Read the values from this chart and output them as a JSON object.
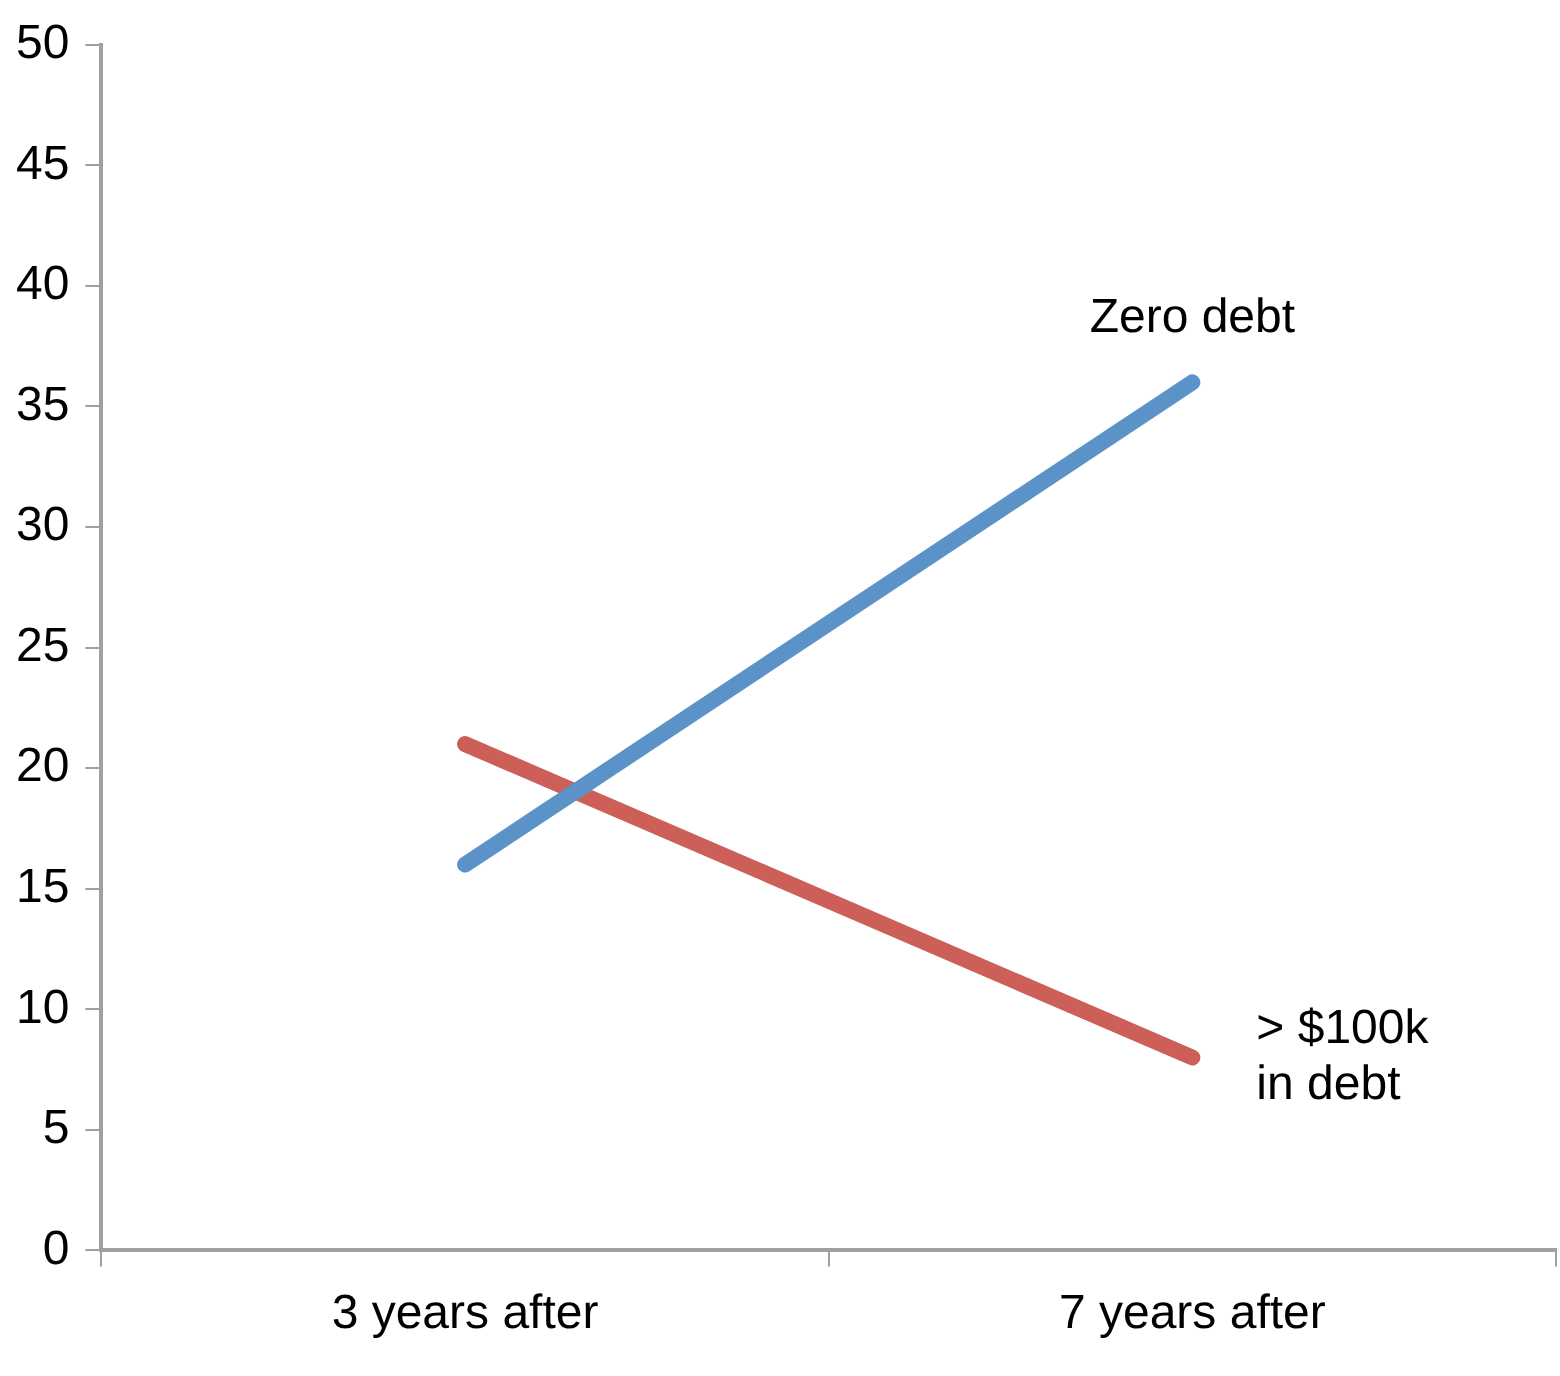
{
  "chart_data": {
    "type": "line",
    "categories": [
      "3 years after",
      "7 years after"
    ],
    "series": [
      {
        "name": "Zero debt",
        "color": "#5b93c8",
        "values": [
          16,
          36
        ]
      },
      {
        "name": "> $100k\nin debt",
        "color": "#cc6058",
        "values": [
          21,
          8
        ]
      }
    ],
    "ylim": [
      0,
      50
    ],
    "yticks": [
      0,
      5,
      10,
      15,
      20,
      25,
      30,
      35,
      40,
      45,
      50
    ],
    "grid": false,
    "legend": false,
    "marker": "none",
    "line_style": "solid"
  }
}
